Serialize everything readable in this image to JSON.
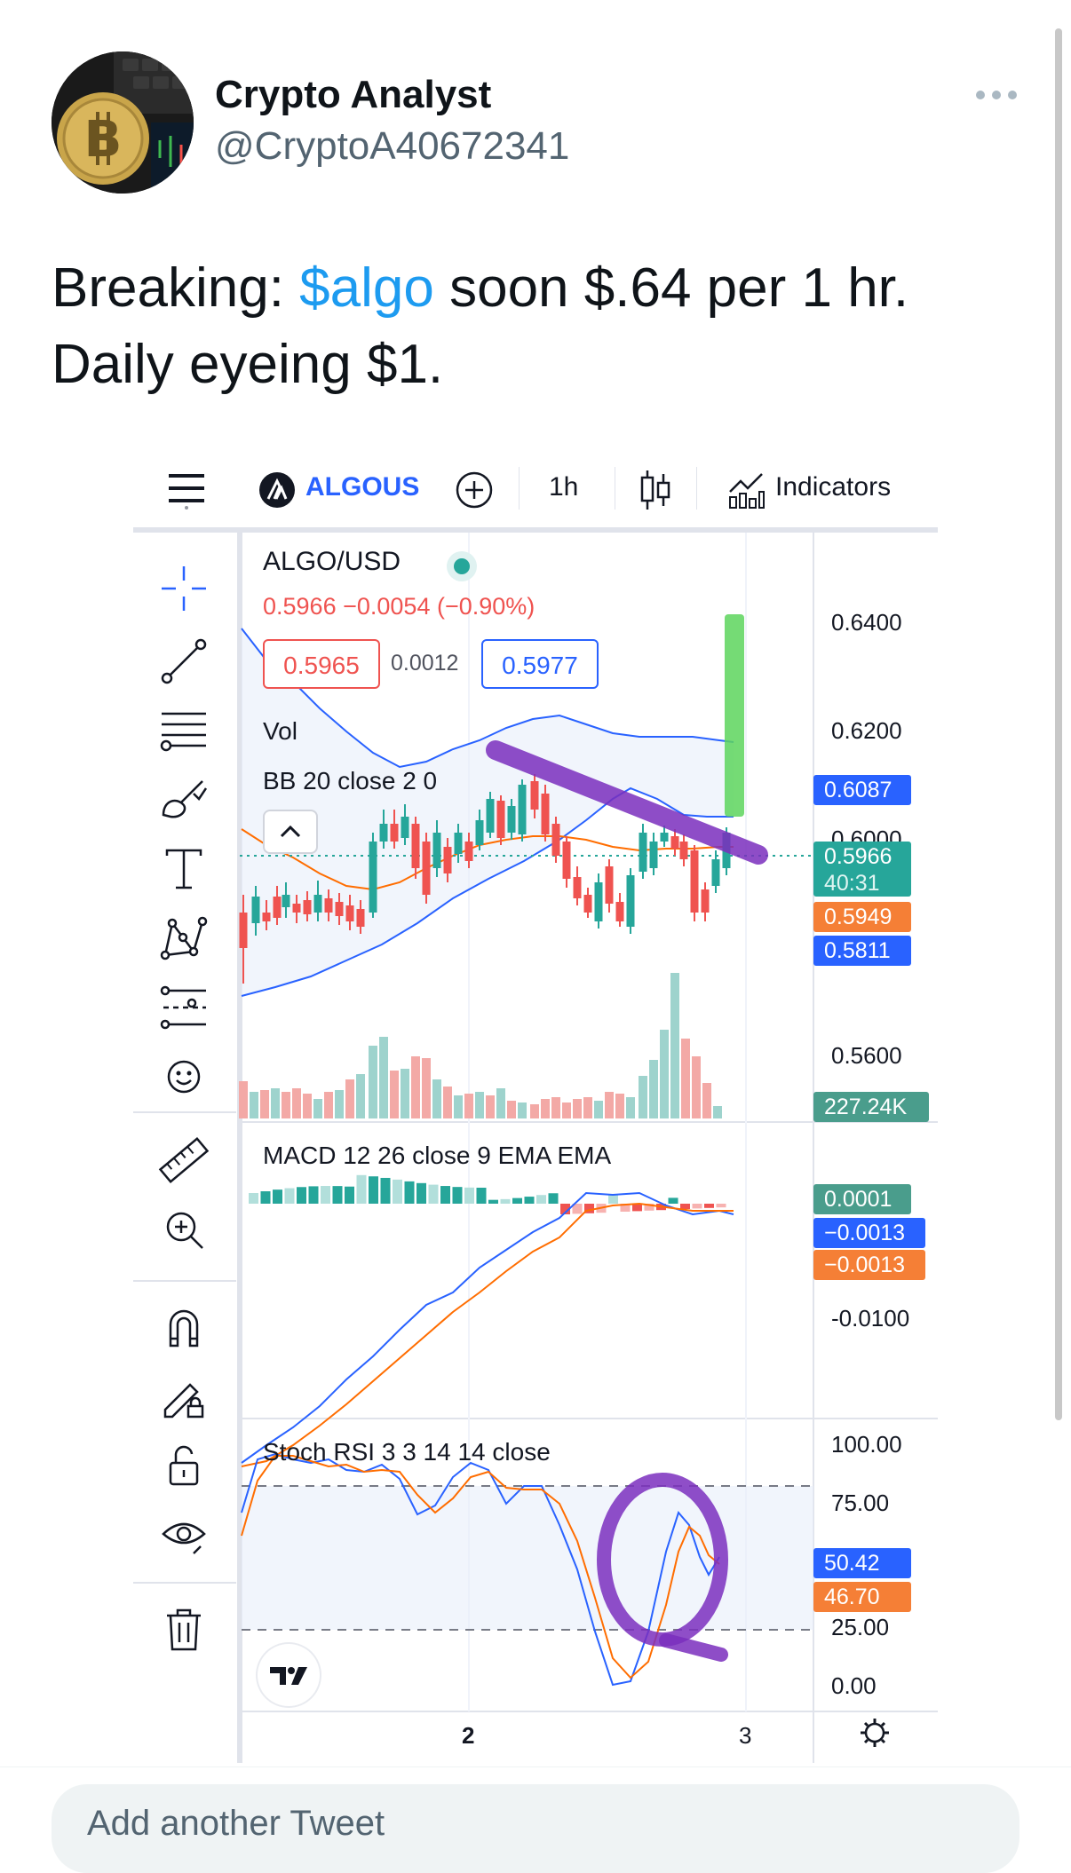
{
  "author": {
    "name": "Crypto Analyst",
    "handle": "@CryptoA40672341",
    "avatar_icon": "bitcoin-avatar"
  },
  "tweet": {
    "text_before": "Breaking: ",
    "cashtag": "$algo",
    "text_after": " soon $.64 per 1 hr. Daily eyeing $1."
  },
  "chart": {
    "toolbar": {
      "symbol": "ALGOUS",
      "interval": "1h",
      "indicators": "Indicators"
    },
    "pair": "ALGO/USD",
    "legend": {
      "price": "0.5966",
      "change": "−0.0054",
      "change_pct": "(−0.90%)",
      "bid": "0.5965",
      "spread": "0.0012",
      "ask": "0.5977"
    },
    "indicator_labels": {
      "vol": "Vol",
      "bb_name": "BB",
      "bb_params": "20 close 2 0",
      "macd_name": "MACD",
      "macd_params": "12 26 close 9 EMA EMA",
      "stoch_name": "Stoch RSI",
      "stoch_params": "3 3 14 14 close"
    },
    "price_axis": [
      "0.6400",
      "0.6200",
      "0.6000",
      "0.5600"
    ],
    "price_tags": {
      "bb_upper": "0.6087",
      "last": "0.5966",
      "countdown": "40:31",
      "bb_basis": "0.5949",
      "bb_lower": "0.5811",
      "volume": "227.24K"
    },
    "macd_axis": [
      "-0.0100"
    ],
    "macd_tags": {
      "hist": "0.0001",
      "macd": "−0.0013",
      "signal": "−0.0013"
    },
    "stoch_axis": [
      "100.00",
      "75.00",
      "25.00",
      "0.00"
    ],
    "stoch_tags": {
      "k": "50.42",
      "d": "46.70"
    },
    "time_axis": [
      "2",
      "3"
    ],
    "colors": {
      "up": "#26a69a",
      "down": "#ef5350",
      "bb": "#2962ff",
      "basis": "#ff6d00",
      "annotation": "#7b2fbe",
      "target": "#5dd55d"
    }
  },
  "reply": {
    "placeholder": "Add another Tweet"
  }
}
